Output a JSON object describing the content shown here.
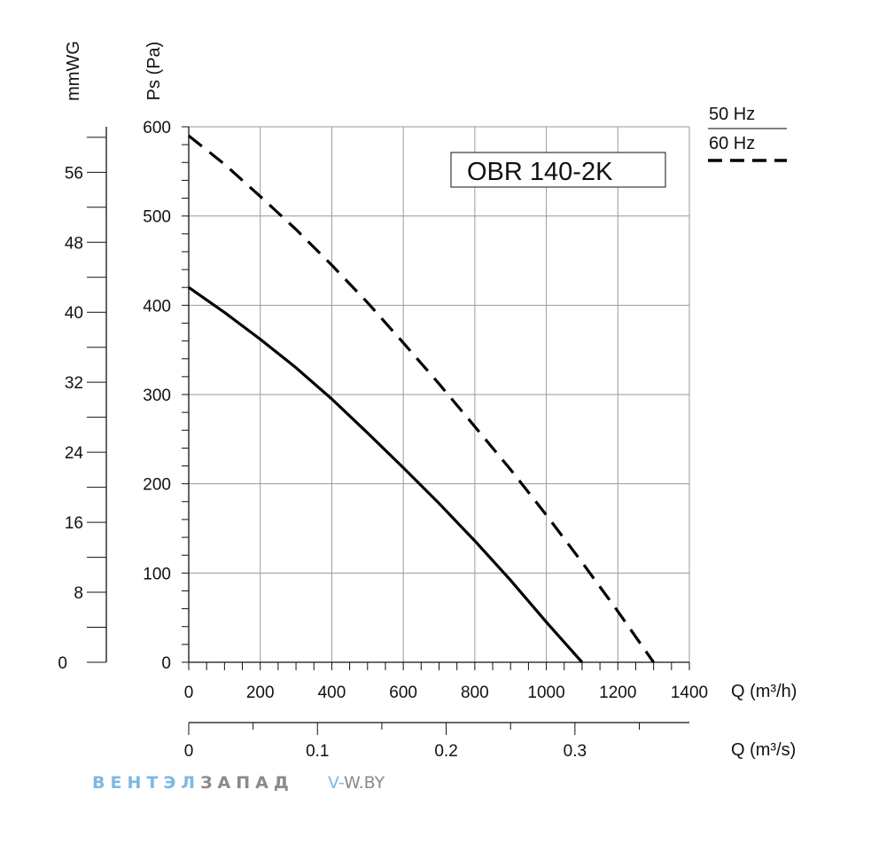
{
  "chart_data": {
    "type": "line",
    "title": "OBR 140-2K",
    "ylabel": "Ps (Pa)",
    "y2label": "mmWG",
    "xlabel": "Q (m³/h)",
    "x2label": "Q (m³/s)",
    "xlim": [
      0,
      1400
    ],
    "ylim": [
      0,
      600
    ],
    "x2lim": [
      0,
      0.3889
    ],
    "y2lim": [
      0,
      61.2
    ],
    "x_ticks": [
      "0",
      "200",
      "400",
      "600",
      "800",
      "1000",
      "1200",
      "1400"
    ],
    "y_ticks": [
      "0",
      "100",
      "200",
      "300",
      "400",
      "500",
      "600"
    ],
    "x2_ticks": [
      "0",
      "0.1",
      "0.2",
      "0.3"
    ],
    "y2_ticks": [
      "0",
      "8",
      "16",
      "24",
      "32",
      "40",
      "48",
      "56"
    ],
    "grid": true,
    "legend_placement": "top-right",
    "series": [
      {
        "name": "50 Hz",
        "style": "solid",
        "color": "#000000",
        "x": [
          0,
          100,
          200,
          300,
          400,
          500,
          600,
          700,
          800,
          900,
          1000,
          1100
        ],
        "y": [
          420,
          392,
          362,
          330,
          295,
          257,
          218,
          178,
          136,
          92,
          45,
          0
        ]
      },
      {
        "name": "60 Hz",
        "style": "dashed",
        "color": "#000000",
        "x": [
          0,
          100,
          200,
          300,
          400,
          500,
          600,
          700,
          800,
          900,
          1000,
          1100,
          1200,
          1300
        ],
        "y": [
          590,
          558,
          522,
          485,
          445,
          403,
          358,
          312,
          264,
          216,
          165,
          112,
          57,
          0
        ]
      }
    ]
  },
  "watermark": {
    "brand_part1": "ВЕНТЭЛ",
    "brand_part2": "ЗАПАД",
    "site_prefix": "V-",
    "site_rest": "W.BY",
    "color_light": "#7db8e0",
    "color_dark": "#8a8a8a"
  }
}
